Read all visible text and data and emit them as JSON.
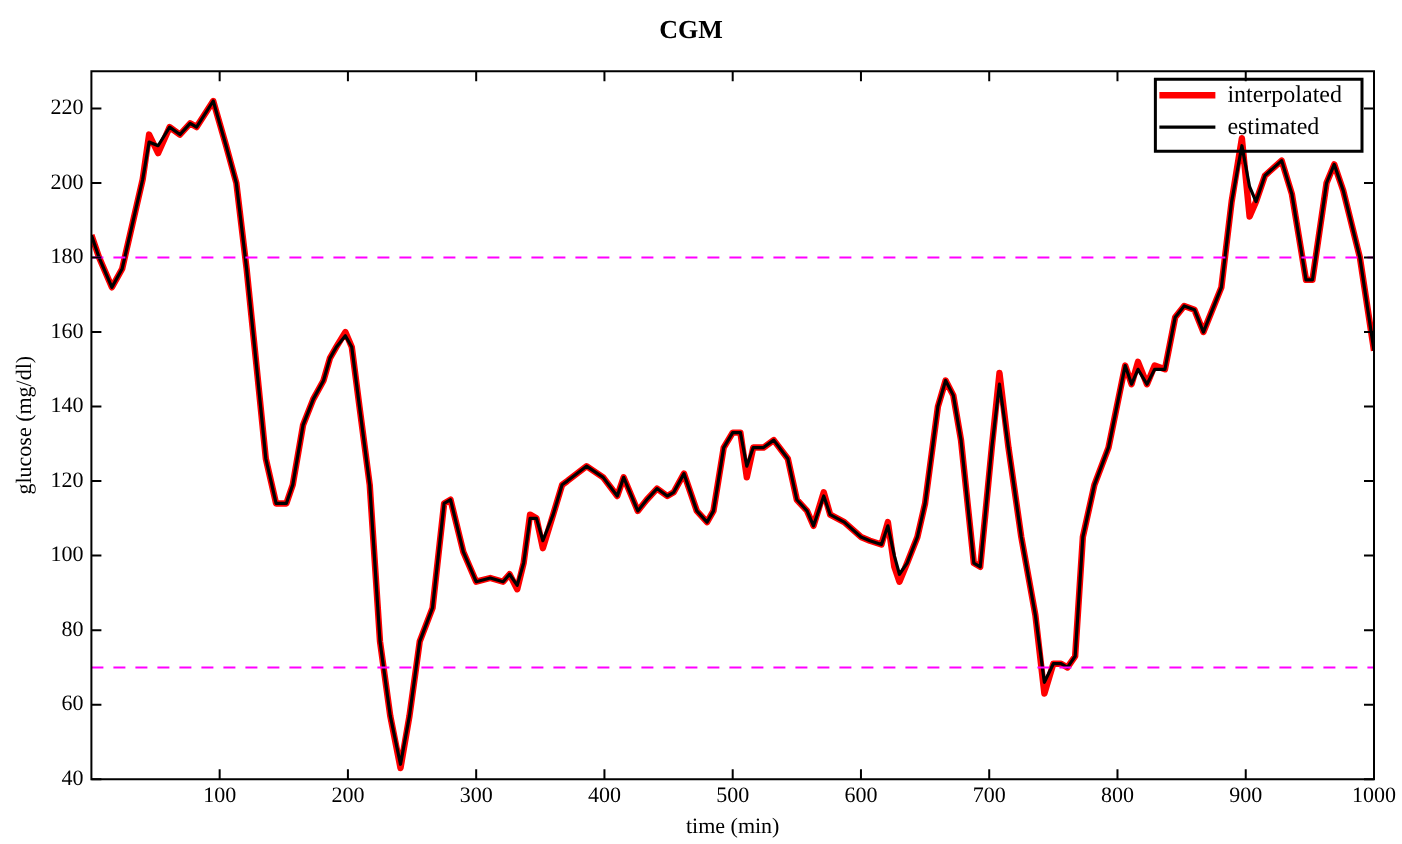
{
  "chart_data": {
    "type": "line",
    "title": "CGM",
    "xlabel": "time (min)",
    "ylabel": "glucose (mg/dl)",
    "x": [
      0,
      6,
      16,
      24,
      32,
      40,
      45,
      52,
      61,
      69,
      77,
      82,
      95,
      105,
      113,
      121,
      129,
      136,
      144,
      152,
      157,
      165,
      173,
      181,
      186,
      191,
      198,
      203,
      209,
      217,
      225,
      233,
      241,
      248,
      256,
      266,
      275,
      280,
      290,
      300,
      311,
      321,
      326,
      332,
      337,
      342,
      347,
      352,
      360,
      367,
      371,
      386,
      399,
      410,
      415,
      426,
      433,
      441,
      449,
      454,
      462,
      472,
      480,
      485,
      493,
      500,
      506,
      511,
      516,
      524,
      532,
      543,
      550,
      558,
      563,
      571,
      576,
      587,
      600,
      607,
      616,
      621,
      626,
      630,
      636,
      644,
      650,
      660,
      666,
      672,
      678,
      688,
      693,
      702,
      708,
      715,
      725,
      736,
      743,
      750,
      756,
      761,
      767,
      773,
      782,
      793,
      806,
      811,
      816,
      823,
      829,
      837,
      845,
      852,
      860,
      867,
      881,
      889,
      897,
      903,
      908,
      915,
      928,
      936,
      947,
      952,
      963,
      969,
      976,
      989,
      1000
    ],
    "series": [
      {
        "name": "interpolated",
        "color": "#ff0000",
        "values": [
          186,
          180,
          172,
          177,
          189,
          201,
          213,
          208,
          215,
          213,
          216,
          215,
          222,
          210,
          200,
          177,
          150,
          126,
          114,
          114,
          119,
          135,
          142,
          147,
          153,
          156,
          160,
          156,
          140,
          119,
          77,
          57,
          43,
          57,
          77,
          86,
          114,
          115,
          101,
          93,
          94,
          93,
          95,
          91,
          98,
          111,
          110,
          102,
          111,
          119,
          120,
          124,
          121,
          116,
          121,
          112,
          115,
          118,
          116,
          117,
          122,
          112,
          109,
          112,
          129,
          133,
          133,
          121,
          129,
          129,
          131,
          126,
          115,
          112,
          108,
          117,
          111,
          109,
          105,
          104,
          103,
          109,
          97,
          93,
          98,
          105,
          114,
          140,
          147,
          143,
          131,
          98,
          97,
          129,
          149,
          129,
          105,
          84,
          63,
          71,
          71,
          70,
          73,
          105,
          119,
          129,
          151,
          146,
          152,
          146,
          151,
          150,
          164,
          167,
          166,
          160,
          172,
          195,
          212,
          191,
          195,
          202,
          206,
          197,
          174,
          174,
          200,
          205,
          198,
          180,
          155
        ]
      },
      {
        "name": "estimated",
        "color": "#000000",
        "values": [
          186,
          180,
          172,
          177,
          189,
          201,
          211,
          210,
          215,
          213,
          216,
          215,
          222,
          210,
          200,
          177,
          150,
          126,
          114,
          114,
          119,
          135,
          142,
          147,
          153,
          156,
          159,
          156,
          140,
          119,
          77,
          57,
          44,
          57,
          77,
          86,
          114,
          115,
          101,
          93,
          94,
          93,
          95,
          92,
          98,
          110,
          110,
          104,
          111,
          119,
          120,
          124,
          121,
          116,
          121,
          112,
          115,
          118,
          116,
          117,
          122,
          112,
          109,
          112,
          129,
          133,
          133,
          124,
          129,
          129,
          131,
          126,
          115,
          112,
          108,
          116,
          111,
          109,
          105,
          104,
          103,
          108,
          100,
          95,
          98,
          105,
          114,
          140,
          147,
          143,
          131,
          98,
          97,
          129,
          146,
          129,
          105,
          84,
          66,
          71,
          71,
          70,
          73,
          105,
          119,
          129,
          151,
          146,
          150,
          146,
          150,
          150,
          164,
          167,
          166,
          160,
          172,
          195,
          210,
          199,
          195,
          202,
          206,
          197,
          174,
          174,
          200,
          205,
          198,
          180,
          155
        ]
      }
    ],
    "xlim": [
      0,
      1000
    ],
    "xticks": [
      100,
      200,
      300,
      400,
      500,
      600,
      700,
      800,
      900,
      1000
    ],
    "ylim": [
      40,
      230
    ],
    "yticks": [
      40,
      60,
      80,
      100,
      120,
      140,
      160,
      180,
      200,
      220
    ],
    "ref_lines": [
      {
        "axis": "y",
        "value": 180,
        "color": "#ff00ff",
        "line_style": "dashed"
      },
      {
        "axis": "y",
        "value": 70,
        "color": "#ff00ff",
        "line_style": "dashed"
      }
    ],
    "grid": false,
    "legend": "top right",
    "marker": "none",
    "line_style": "solid"
  }
}
